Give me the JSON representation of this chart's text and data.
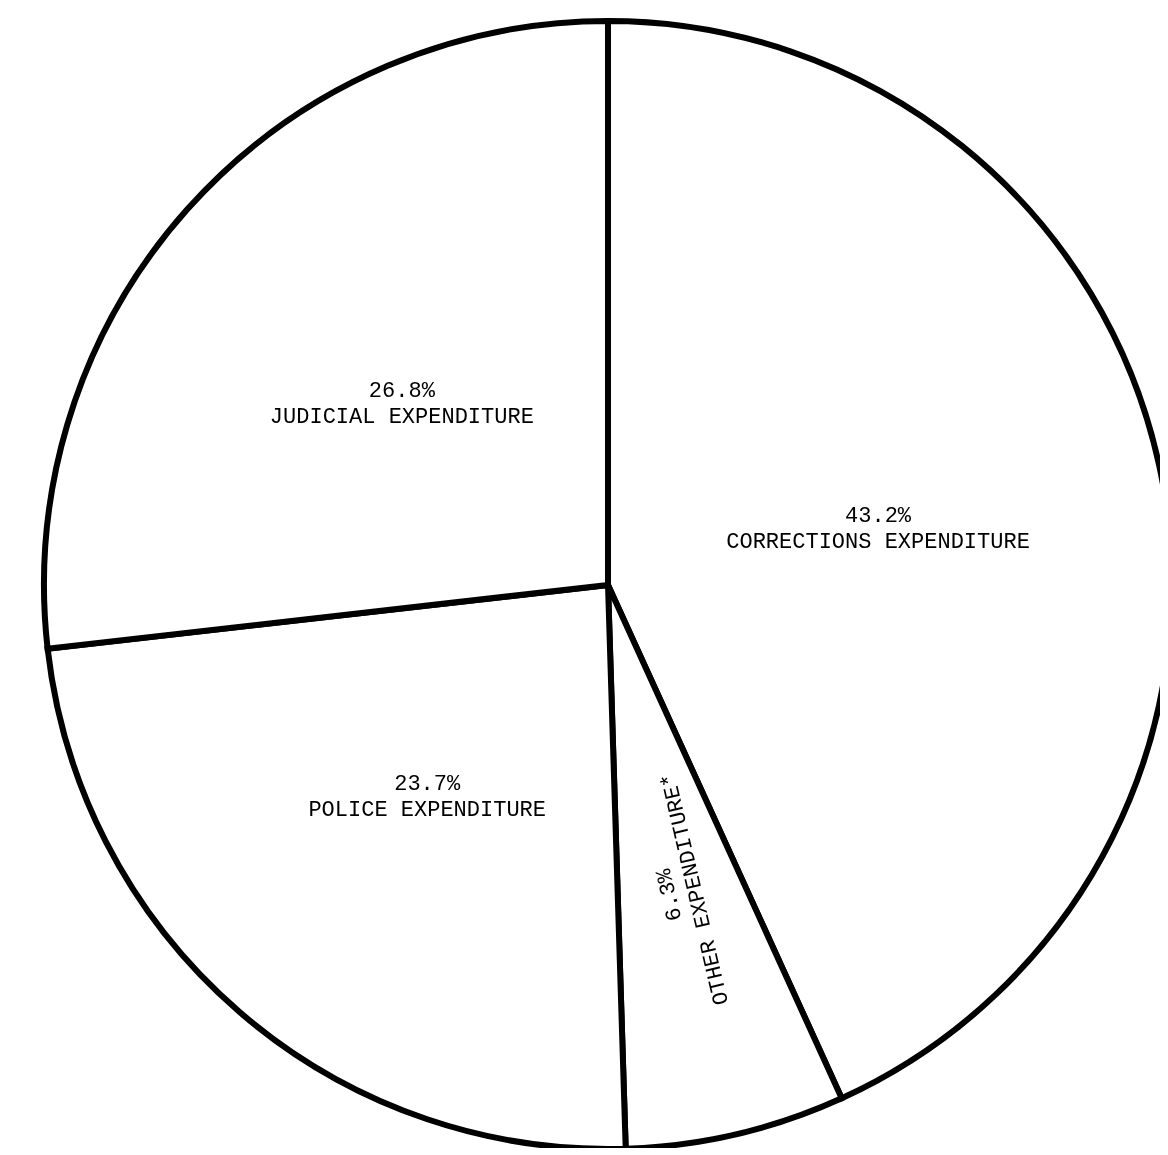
{
  "chart_data": {
    "type": "pie",
    "categories": [
      "CORRECTIONS EXPENDITURE",
      "OTHER EXPENDITURE*",
      "POLICE EXPENDITURE",
      "JUDICIAL EXPENDITURE"
    ],
    "values": [
      43.2,
      6.3,
      23.7,
      26.8
    ],
    "value_labels": [
      "43.2%",
      "6.3%",
      "23.7%",
      "26.8%"
    ],
    "colors": [
      "#ffffff",
      "#ffffff",
      "#ffffff",
      "#ffffff"
    ]
  }
}
